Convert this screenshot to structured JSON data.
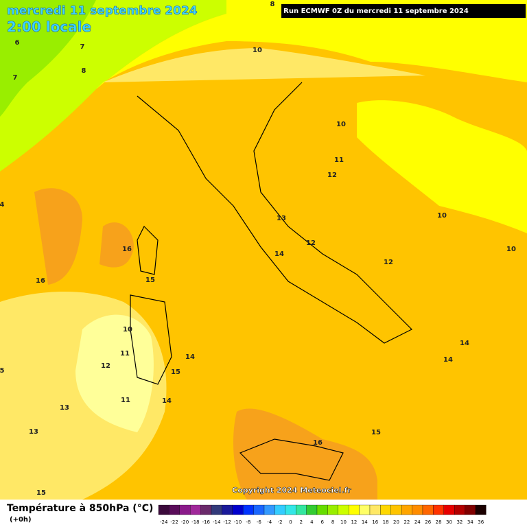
{
  "header": {
    "title": "mercredi 11 septembre 2024",
    "subtitle": "2:00 locale",
    "run": "Run ECMWF 0Z du mercredi 11 septembre 2024"
  },
  "map": {
    "contour_labels": [
      "8",
      "6",
      "7",
      "8",
      "7",
      "10",
      "10",
      "11",
      "12",
      "10",
      "13",
      "12",
      "14",
      "12",
      "10",
      "16",
      "16",
      "15",
      "10",
      "11",
      "12",
      "14",
      "15",
      "11",
      "14",
      "13",
      "13",
      "15",
      "14",
      "14",
      "16",
      "15",
      "5",
      "4"
    ]
  },
  "copyright": "Copyright 2024 Meteociel.fr",
  "legend": {
    "title": "Température à 850hPa (°C)",
    "step": "(+0h)",
    "ticks": [
      -24,
      -22,
      -20,
      -18,
      -16,
      -14,
      -12,
      -10,
      -8,
      -6,
      -4,
      -2,
      0,
      2,
      4,
      6,
      8,
      10,
      12,
      14,
      16,
      18,
      20,
      22,
      24,
      26,
      28,
      30,
      32,
      34,
      36
    ],
    "colors": [
      "#3b0a3b",
      "#5a0d5a",
      "#8a1a8a",
      "#a0289a",
      "#6a2a6a",
      "#333a7a",
      "#1a1a9a",
      "#0000cc",
      "#0033ff",
      "#1a66ff",
      "#3399ff",
      "#33ccff",
      "#33e6e6",
      "#33e6a0",
      "#33cc33",
      "#66dd00",
      "#99ee00",
      "#ccff00",
      "#ffff00",
      "#ffff66",
      "#ffe866",
      "#ffd700",
      "#ffc400",
      "#ffa500",
      "#ff8c00",
      "#ff6600",
      "#ff3300",
      "#e60000",
      "#b30000",
      "#800000",
      "#1a0000"
    ]
  }
}
